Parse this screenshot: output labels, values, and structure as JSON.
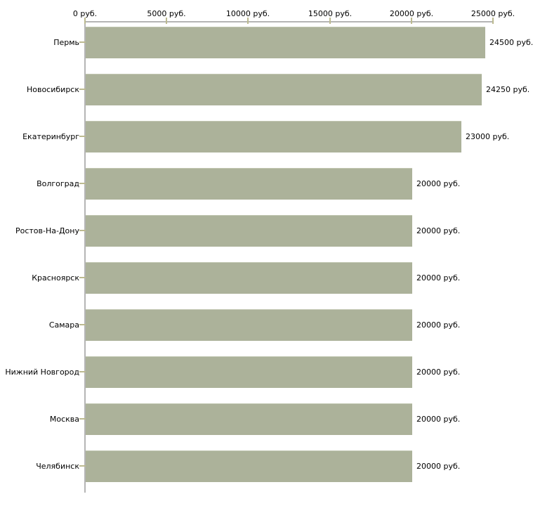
{
  "chart_data": {
    "type": "bar",
    "orientation": "horizontal",
    "title": "",
    "categories": [
      "Пермь",
      "Новосибирск",
      "Екатеринбург",
      "Волгоград",
      "Ростов-На-Дону",
      "Красноярск",
      "Самара",
      "Нижний Новгород",
      "Москва",
      "Челябинск"
    ],
    "values": [
      24500,
      24250,
      23000,
      20000,
      20000,
      20000,
      20000,
      20000,
      20000,
      20000
    ],
    "value_labels": [
      "24500 руб.",
      "24250 руб.",
      "23000 руб.",
      "20000 руб.",
      "20000 руб.",
      "20000 руб.",
      "20000 руб.",
      "20000 руб.",
      "20000 руб.",
      "20000 руб."
    ],
    "x_ticks": [
      0,
      5000,
      10000,
      15000,
      20000,
      25000
    ],
    "x_tick_labels": [
      "0 руб.",
      "5000 руб.",
      "10000 руб.",
      "15000 руб.",
      "20000 руб.",
      "25000 руб."
    ],
    "xlim": [
      0,
      25000
    ],
    "unit": "руб.",
    "grid": false,
    "legend": false,
    "colors": {
      "bar": "#acb29a",
      "bar_edge": "#c2c7b2",
      "axis_line": "#b5b5b5",
      "tick_mark": "#bcba90",
      "text": "#000000",
      "background": "#ffffff"
    }
  }
}
